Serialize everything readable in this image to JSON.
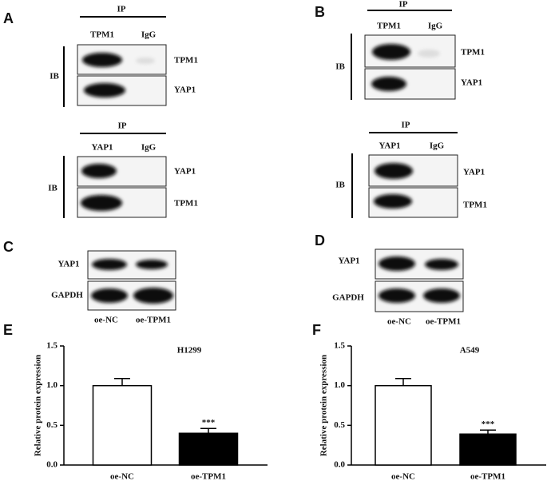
{
  "panel_a": {
    "letter": "A",
    "top": {
      "ip": "IP",
      "lanes": [
        "TPM1",
        "IgG"
      ],
      "ib": "IB",
      "rows": [
        "TPM1",
        "YAP1"
      ]
    },
    "bottom": {
      "ip": "IP",
      "lanes": [
        "YAP1",
        "IgG"
      ],
      "ib": "IB",
      "rows": [
        "YAP1",
        "TPM1"
      ]
    }
  },
  "panel_b": {
    "letter": "B",
    "top": {
      "ip": "IP",
      "lanes": [
        "TPM1",
        "IgG"
      ],
      "ib": "IB",
      "rows": [
        "TPM1",
        "YAP1"
      ]
    },
    "bottom": {
      "ip": "IP",
      "lanes": [
        "YAP1",
        "IgG"
      ],
      "ib": "IB",
      "rows": [
        "YAP1",
        "TPM1"
      ]
    }
  },
  "panel_c": {
    "letter": "C",
    "rows": [
      "YAP1",
      "GAPDH"
    ],
    "lanes": [
      "oe-NC",
      "oe-TPM1"
    ]
  },
  "panel_d": {
    "letter": "D",
    "rows": [
      "YAP1",
      "GAPDH"
    ],
    "lanes": [
      "oe-NC",
      "oe-TPM1"
    ]
  },
  "chart_data": [
    {
      "type": "bar",
      "panel_label": "E",
      "title": "H1299",
      "y_label": "Relative protein expression",
      "categories": [
        "oe-NC",
        "oe-TPM1"
      ],
      "values": [
        1.0,
        0.4
      ],
      "errors": [
        0.09,
        0.06
      ],
      "significance": [
        null,
        "***"
      ],
      "colors": [
        "#ffffff",
        "#000000"
      ],
      "edge_color": "#000000",
      "ylim": [
        0,
        1.5
      ],
      "yticks": [
        {
          "value": 0,
          "label": "0.0"
        },
        {
          "value": 0.5,
          "label": "0.5"
        },
        {
          "value": 1,
          "label": "1.0"
        },
        {
          "value": 1.5,
          "label": "1.5"
        }
      ]
    },
    {
      "type": "bar",
      "panel_label": "F",
      "title": "A549",
      "y_label": "Relative protein expression",
      "categories": [
        "oe-NC",
        "oe-TPM1"
      ],
      "values": [
        1.0,
        0.39
      ],
      "errors": [
        0.09,
        0.05
      ],
      "significance": [
        null,
        "***"
      ],
      "colors": [
        "#ffffff",
        "#000000"
      ],
      "edge_color": "#000000",
      "ylim": [
        0,
        1.5
      ],
      "yticks": [
        {
          "value": 0,
          "label": "0.0"
        },
        {
          "value": 0.5,
          "label": "0.5"
        },
        {
          "value": 1,
          "label": "1.0"
        },
        {
          "value": 1.5,
          "label": "1.5"
        }
      ]
    }
  ]
}
